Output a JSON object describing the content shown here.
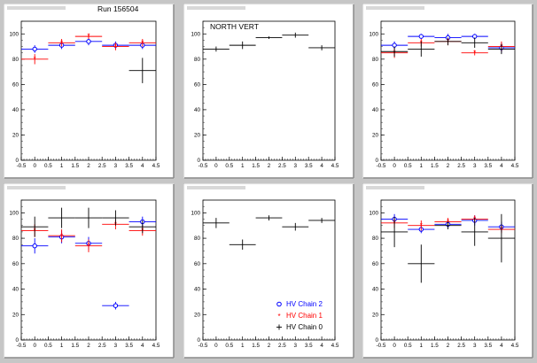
{
  "run_label": "Run 156504",
  "colors": {
    "chain2": "#0000ff",
    "chain1": "#ff0000",
    "chain0": "#000000",
    "background": "#c6c6c6",
    "pad": "#ffffff"
  },
  "legend": {
    "placement": "bottom-right of middle-bottom panel",
    "entries": [
      {
        "label": "HV Chain 2",
        "marker": "open-circle",
        "color": "#0000ff"
      },
      {
        "label": "HV Chain 1",
        "marker": "star",
        "color": "#ff0000"
      },
      {
        "label": "HV Chain 0",
        "marker": "cross",
        "color": "#000000"
      }
    ]
  },
  "chart_data": [
    {
      "type": "scatter",
      "title": "",
      "annotation": "Run 156504",
      "xlim": [
        -0.5,
        4.5
      ],
      "ylim": [
        0,
        110
      ],
      "xticks": [
        "-0.5",
        "0",
        "0.5",
        "1",
        "1.5",
        "2",
        "2.5",
        "3",
        "3.5",
        "4",
        "4.5"
      ],
      "yticks": [
        "0",
        "20",
        "40",
        "60",
        "80",
        "100"
      ],
      "series": [
        {
          "color": "#0000ff",
          "points": [
            [
              0,
              88,
              3
            ],
            [
              1,
              91,
              3
            ],
            [
              2,
              94,
              3
            ],
            [
              3,
              91,
              3
            ],
            [
              4,
              91,
              3
            ]
          ]
        },
        {
          "color": "#ff0000",
          "points": [
            [
              0,
              80,
              4
            ],
            [
              1,
              93,
              3
            ],
            [
              2,
              98,
              2
            ],
            [
              3,
              90,
              3
            ],
            [
              4,
              93,
              3
            ]
          ]
        },
        {
          "color": "#000000",
          "points": [
            [
              4,
              71,
              10
            ]
          ]
        }
      ]
    },
    {
      "type": "scatter",
      "title": "",
      "annotation": "NORTH VERT",
      "xlim": [
        -0.5,
        4.5
      ],
      "ylim": [
        0,
        110
      ],
      "xticks": [
        "-0.5",
        "0",
        "0.5",
        "1",
        "1.5",
        "2",
        "2.5",
        "3",
        "3.5",
        "4",
        "4.5"
      ],
      "yticks": [
        "0",
        "20",
        "40",
        "60",
        "80",
        "100"
      ],
      "series": [
        {
          "color": "#000000",
          "points": [
            [
              0,
              88,
              2
            ],
            [
              1,
              91,
              3
            ],
            [
              2,
              97,
              1
            ],
            [
              3,
              99,
              2
            ],
            [
              4,
              89,
              2
            ]
          ]
        }
      ]
    },
    {
      "type": "scatter",
      "title": "",
      "annotation": "",
      "xlim": [
        -0.5,
        4.5
      ],
      "ylim": [
        0,
        110
      ],
      "xticks": [
        "-0.5",
        "0",
        "0.5",
        "1",
        "1.5",
        "2",
        "2.5",
        "3",
        "3.5",
        "4",
        "4.5"
      ],
      "yticks": [
        "0",
        "20",
        "40",
        "60",
        "80",
        "100"
      ],
      "series": [
        {
          "color": "#0000ff",
          "points": [
            [
              0,
              91,
              3
            ],
            [
              1,
              98,
              2
            ],
            [
              2,
              97,
              3
            ],
            [
              3,
              98,
              2
            ],
            [
              4,
              89,
              4
            ]
          ]
        },
        {
          "color": "#ff0000",
          "points": [
            [
              0,
              85,
              4
            ],
            [
              1,
              93,
              3
            ],
            [
              2,
              94,
              3
            ],
            [
              3,
              85,
              2
            ],
            [
              4,
              90,
              4
            ]
          ]
        },
        {
          "color": "#000000",
          "points": [
            [
              0,
              86,
              4
            ],
            [
              1,
              88,
              6
            ],
            [
              2,
              94,
              3
            ],
            [
              3,
              93,
              4
            ],
            [
              4,
              88,
              4
            ]
          ]
        }
      ]
    },
    {
      "type": "scatter",
      "title": "",
      "annotation": "",
      "xlim": [
        -0.5,
        4.5
      ],
      "ylim": [
        0,
        110
      ],
      "xticks": [
        "-0.5",
        "0",
        "0.5",
        "1",
        "1.5",
        "2",
        "2.5",
        "3",
        "3.5",
        "4",
        "4.5"
      ],
      "yticks": [
        "0",
        "20",
        "40",
        "60",
        "80",
        "100"
      ],
      "series": [
        {
          "color": "#0000ff",
          "points": [
            [
              0,
              74,
              6
            ],
            [
              1,
              81,
              5
            ],
            [
              2,
              76,
              5
            ],
            [
              3,
              27,
              3
            ],
            [
              4,
              93,
              4
            ]
          ]
        },
        {
          "color": "#ff0000",
          "points": [
            [
              0,
              86,
              5
            ],
            [
              1,
              82,
              5
            ],
            [
              2,
              74,
              5
            ],
            [
              3,
              91,
              4
            ],
            [
              4,
              86,
              4
            ]
          ]
        },
        {
          "color": "#000000",
          "points": [
            [
              0,
              89,
              8
            ],
            [
              1,
              96,
              8
            ],
            [
              2,
              96,
              8
            ],
            [
              3,
              96,
              6
            ],
            [
              4,
              89,
              5
            ]
          ]
        }
      ]
    },
    {
      "type": "scatter",
      "title": "",
      "annotation": "",
      "xlim": [
        -0.5,
        4.5
      ],
      "ylim": [
        0,
        110
      ],
      "xticks": [
        "-0.5",
        "0",
        "0.5",
        "1",
        "1.5",
        "2",
        "2.5",
        "3",
        "3.5",
        "4",
        "4.5"
      ],
      "yticks": [
        "0",
        "20",
        "40",
        "60",
        "80",
        "100"
      ],
      "series": [
        {
          "color": "#000000",
          "points": [
            [
              0,
              92,
              4
            ],
            [
              1,
              75,
              4
            ],
            [
              2,
              96,
              2
            ],
            [
              3,
              89,
              3
            ],
            [
              4,
              94,
              2
            ]
          ]
        }
      ]
    },
    {
      "type": "scatter",
      "title": "",
      "annotation": "",
      "xlim": [
        -0.5,
        4.5
      ],
      "ylim": [
        0,
        110
      ],
      "xticks": [
        "-0.5",
        "0",
        "0.5",
        "1",
        "1.5",
        "2",
        "2.5",
        "3",
        "3.5",
        "4",
        "4.5"
      ],
      "yticks": [
        "0",
        "20",
        "40",
        "60",
        "80",
        "100"
      ],
      "series": [
        {
          "color": "#0000ff",
          "points": [
            [
              0,
              95,
              4
            ],
            [
              1,
              87,
              3
            ],
            [
              2,
              91,
              3
            ],
            [
              3,
              94,
              4
            ],
            [
              4,
              89,
              4
            ]
          ]
        },
        {
          "color": "#ff0000",
          "points": [
            [
              0,
              92,
              4
            ],
            [
              1,
              90,
              4
            ],
            [
              2,
              93,
              3
            ],
            [
              3,
              95,
              3
            ],
            [
              4,
              87,
              3
            ]
          ]
        },
        {
          "color": "#000000",
          "points": [
            [
              0,
              85,
              12
            ],
            [
              1,
              60,
              15
            ],
            [
              2,
              90,
              3
            ],
            [
              3,
              85,
              11
            ],
            [
              4,
              80,
              19
            ]
          ]
        }
      ]
    }
  ]
}
